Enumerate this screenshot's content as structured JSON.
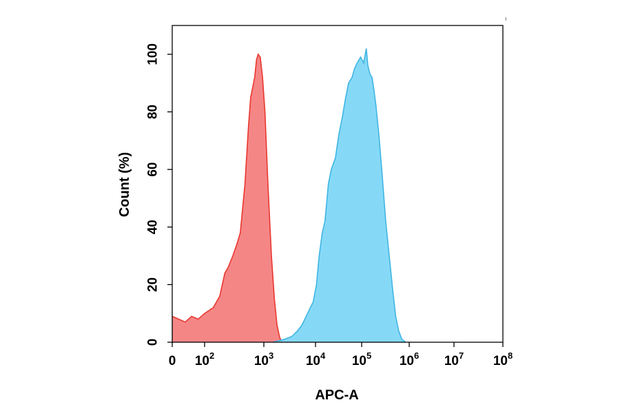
{
  "chart_data": {
    "type": "area",
    "xlabel": "APC-A",
    "ylabel": "Count  (%)",
    "x_scale": "biexponential (log)",
    "xlim": [
      0,
      100000000
    ],
    "ylim": [
      0,
      110
    ],
    "grid": false,
    "legend": "none",
    "x_ticks": [
      {
        "base": "0",
        "exp": ""
      },
      {
        "base": "10",
        "exp": "2"
      },
      {
        "base": "10",
        "exp": "3"
      },
      {
        "base": "10",
        "exp": "4"
      },
      {
        "base": "10",
        "exp": "5"
      },
      {
        "base": "10",
        "exp": "6"
      },
      {
        "base": "10",
        "exp": "7"
      },
      {
        "base": "10",
        "exp": "8"
      }
    ],
    "y_ticks": [
      "0",
      "20",
      "40",
      "60",
      "80",
      "100"
    ],
    "series": [
      {
        "color": "#f47f7f",
        "edge_color": "#e8372f",
        "points": [
          [
            0,
            9
          ],
          [
            20,
            8
          ],
          [
            40,
            7
          ],
          [
            60,
            9
          ],
          [
            80,
            8
          ],
          [
            100,
            10
          ],
          [
            140,
            12
          ],
          [
            180,
            16
          ],
          [
            220,
            24
          ],
          [
            250,
            26
          ],
          [
            300,
            30
          ],
          [
            350,
            34
          ],
          [
            400,
            38
          ],
          [
            480,
            55
          ],
          [
            550,
            75
          ],
          [
            600,
            85
          ],
          [
            700,
            92
          ],
          [
            750,
            98
          ],
          [
            800,
            100
          ],
          [
            870,
            99
          ],
          [
            950,
            92
          ],
          [
            1050,
            80
          ],
          [
            1200,
            55
          ],
          [
            1400,
            30
          ],
          [
            1600,
            15
          ],
          [
            1800,
            6
          ],
          [
            2000,
            2
          ],
          [
            2200,
            0
          ]
        ]
      },
      {
        "color": "#80d7f6",
        "edge_color": "#3fb5e3",
        "points": [
          [
            1500,
            0
          ],
          [
            2500,
            1
          ],
          [
            3500,
            2
          ],
          [
            4500,
            4
          ],
          [
            5500,
            6
          ],
          [
            7000,
            10
          ],
          [
            9000,
            14
          ],
          [
            10500,
            20
          ],
          [
            12000,
            30
          ],
          [
            14000,
            38
          ],
          [
            16000,
            42
          ],
          [
            19000,
            55
          ],
          [
            22000,
            60
          ],
          [
            27000,
            64
          ],
          [
            32000,
            72
          ],
          [
            38000,
            78
          ],
          [
            45000,
            85
          ],
          [
            52000,
            90
          ],
          [
            62000,
            92
          ],
          [
            70000,
            95
          ],
          [
            80000,
            97
          ],
          [
            95000,
            99
          ],
          [
            110000,
            97
          ],
          [
            125000,
            102
          ],
          [
            135000,
            96
          ],
          [
            150000,
            93
          ],
          [
            165000,
            92
          ],
          [
            180000,
            88
          ],
          [
            200000,
            82
          ],
          [
            230000,
            72
          ],
          [
            270000,
            58
          ],
          [
            320000,
            42
          ],
          [
            380000,
            30
          ],
          [
            450000,
            18
          ],
          [
            520000,
            9
          ],
          [
            600000,
            4
          ],
          [
            700000,
            1
          ],
          [
            850000,
            0
          ]
        ]
      }
    ]
  }
}
